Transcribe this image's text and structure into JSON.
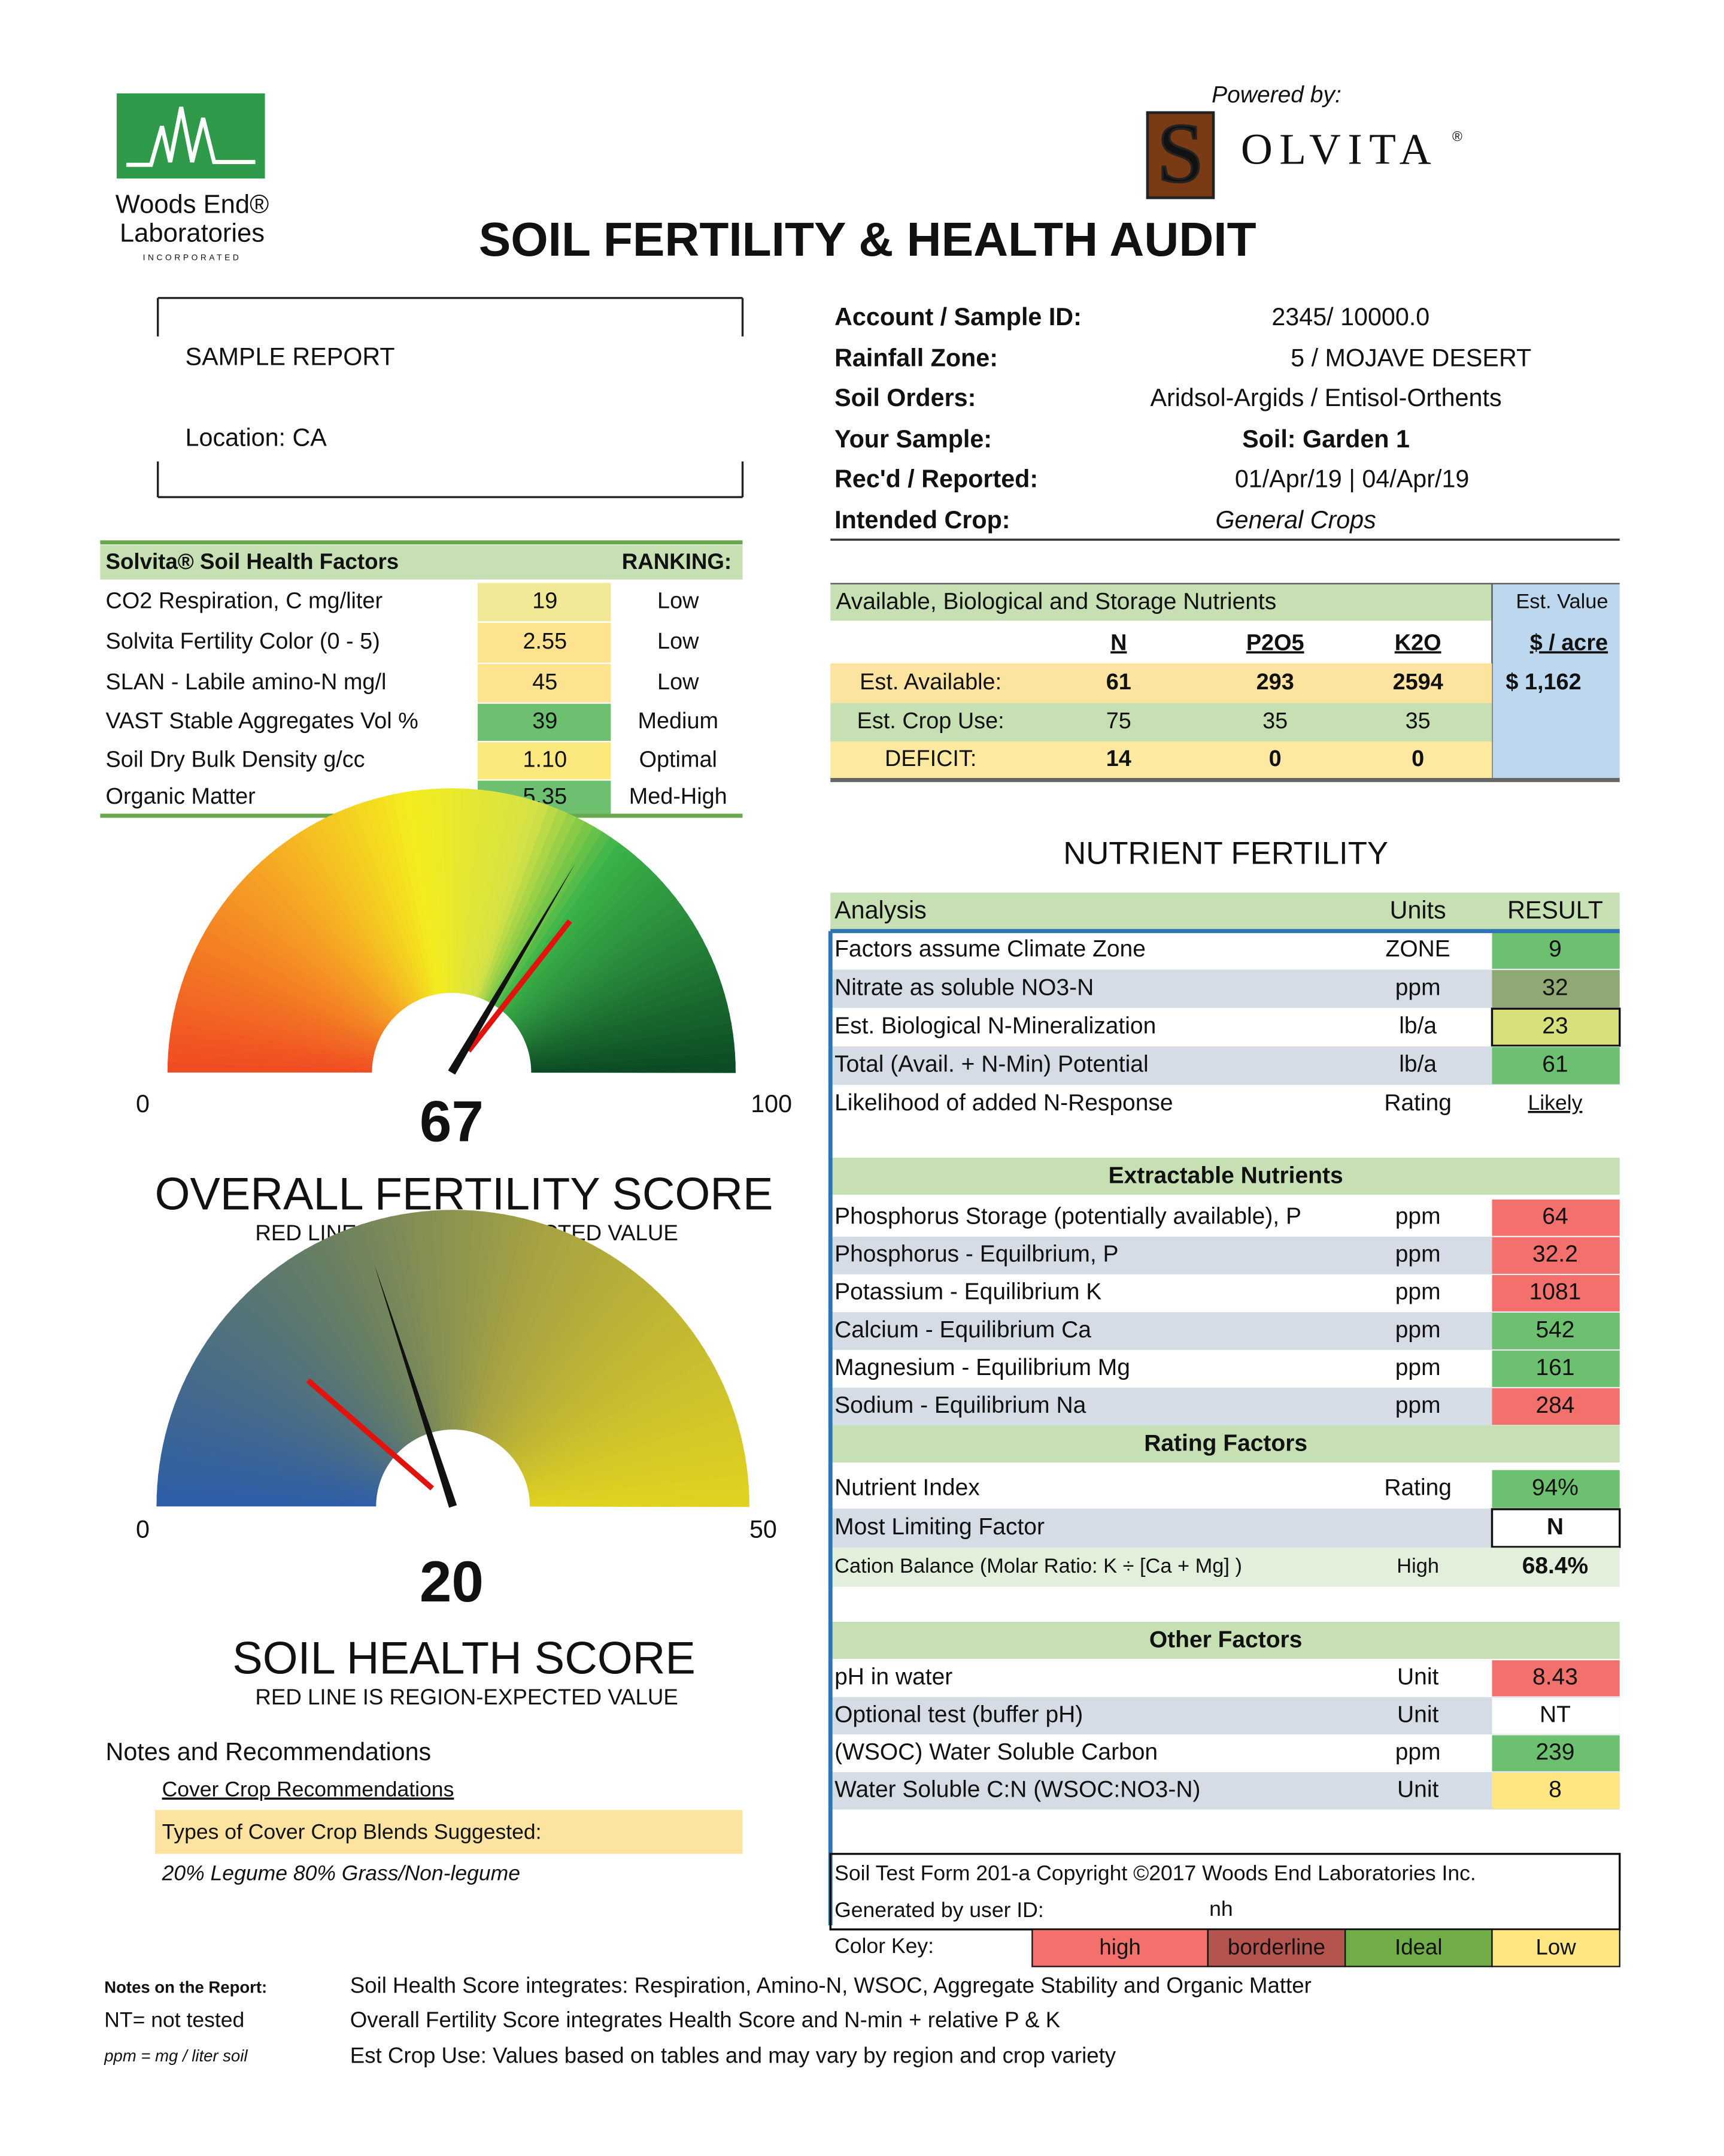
{
  "header": {
    "powered_by": "Powered by:",
    "brand_letter": "S",
    "brand_rest": "OLVITA",
    "brand_mark": "®",
    "lab_name_1": "Woods End®",
    "lab_name_2": "Laboratories",
    "lab_name_3": "INCORPORATED",
    "title": "SOIL FERTILITY & HEALTH AUDIT"
  },
  "sample": {
    "name": "SAMPLE REPORT",
    "location": "Location: CA"
  },
  "info": [
    [
      "Account / Sample ID:",
      "2345/ 10000.0"
    ],
    [
      "Rainfall Zone:",
      "5 / MOJAVE DESERT"
    ],
    [
      "Soil Orders:",
      "Aridsol-Argids / Entisol-Orthents"
    ],
    [
      "Your Sample:",
      "Soil: Garden 1"
    ],
    [
      "Rec'd / Reported:",
      "01/Apr/19 | 04/Apr/19"
    ],
    [
      "Intended Crop:",
      "General Crops"
    ]
  ],
  "health_factors": {
    "header": "Solvita® Soil Health Factors",
    "ranking_header": "RANKING:",
    "rows": [
      {
        "name": "CO2  Respiration, C mg/liter",
        "value": "19",
        "ranking": "Low",
        "color": "#f1e995"
      },
      {
        "name": "Solvita Fertility Color (0 - 5)",
        "value": "2.55",
        "ranking": "Low",
        "color": "#fde38f"
      },
      {
        "name": "SLAN - Labile amino-N  mg/l",
        "value": "45",
        "ranking": "Low",
        "color": "#fde38f"
      },
      {
        "name": "VAST Stable Aggregates Vol %",
        "value": "39",
        "ranking": "Medium",
        "color": "#6cc070"
      },
      {
        "name": "Soil Dry Bulk Density   g/cc",
        "value": "1.10",
        "ranking": "Optimal",
        "color": "#fbe97e"
      },
      {
        "name": "Organic Matter",
        "value": "5.35",
        "ranking": "Med-High",
        "color": "#6cc070"
      }
    ]
  },
  "nutrients": {
    "title": "Available, Biological and Storage Nutrients",
    "value_title": "Est. Value",
    "columns": [
      "N",
      "P2O5",
      "K2O",
      "$ / acre"
    ],
    "rows": [
      {
        "label": "Est. Available:",
        "values": [
          "61",
          "293",
          "2594"
        ],
        "value": "$  1,162"
      },
      {
        "label": "Est. Crop Use:",
        "values": [
          "75",
          "35",
          "35"
        ]
      },
      {
        "label": "DEFICIT:",
        "values": [
          "14",
          "0",
          "0"
        ]
      }
    ]
  },
  "gauges": [
    {
      "min": 0,
      "max": 100,
      "score": 67,
      "title": "OVERALL FERTILITY SCORE",
      "note": "RED LINE IS REGION-EXPECTED VALUE"
    },
    {
      "min": 0,
      "max": 50,
      "score": 20,
      "title": "SOIL HEALTH SCORE",
      "note": "RED LINE IS REGION-EXPECTED VALUE"
    }
  ],
  "recommendations": {
    "title": "Notes and Recommendations",
    "link": "Cover Crop Recommendations",
    "label": "Types of Cover Crop Blends Suggested:",
    "text": "20% Legume 80% Grass/Non-legume"
  },
  "fertility": {
    "title": "NUTRIENT FERTILITY",
    "header": [
      "Analysis",
      "Units",
      "RESULT"
    ],
    "sections": [
      {
        "rows": [
          {
            "name": "Factors assume Climate Zone",
            "units": "ZONE",
            "result": "9",
            "color": "#6cc070"
          },
          {
            "name": "Nitrate as soluble NO3-N",
            "units": "ppm",
            "result": "32",
            "color": "#8fa874"
          },
          {
            "name": "Est. Biological N-Mineralization",
            "units": "lb/a",
            "result": "23",
            "color": "#d8e07c",
            "boxed": true
          },
          {
            "name": "Total (Avail. + N-Min) Potential",
            "units": "lb/a",
            "result": "61",
            "color": "#6cc070"
          },
          {
            "name": "Likelihood of added N-Response",
            "units": "Rating",
            "result": "Likely",
            "underline": true
          }
        ]
      },
      {
        "title": "Extractable Nutrients",
        "rows": [
          {
            "name": "Phosphorus Storage (potentially available), P",
            "units": "ppm",
            "result": "64",
            "color": "#f4706c"
          },
          {
            "name": "Phosphorus - Equilbrium, P",
            "units": "ppm",
            "result": "32.2",
            "color": "#f4706c"
          },
          {
            "name": "Potassium -  Equilibrium K",
            "units": "ppm",
            "result": "1081",
            "color": "#f4706c"
          },
          {
            "name": "Calcium - Equilibrium Ca",
            "units": "ppm",
            "result": "542",
            "color": "#6cc070"
          },
          {
            "name": "Magnesium - Equilibrium Mg",
            "units": "ppm",
            "result": "161",
            "color": "#6cc070"
          },
          {
            "name": "Sodium - Equilibrium Na",
            "units": "ppm",
            "result": "284",
            "color": "#f4706c"
          }
        ]
      },
      {
        "title": "Rating Factors",
        "rows": [
          {
            "name": "Nutrient Index",
            "units": "Rating",
            "result": "94%",
            "color": "#6cc070"
          },
          {
            "name": "Most Limiting Factor",
            "result": "N",
            "color": "#ffffff",
            "boxed": true,
            "bold": true
          },
          {
            "name": "Cation Balance (Molar Ratio: K ÷ [Ca + Mg] )",
            "units": "High",
            "result": "68.4%",
            "bold": true,
            "small": true,
            "row_color": "#e2efda"
          }
        ]
      },
      {
        "title": "Other Factors",
        "rows": [
          {
            "name": "pH in water",
            "units": "Unit",
            "result": "8.43",
            "color": "#f4706c"
          },
          {
            "name": "Optional test (buffer pH)",
            "units": "Unit",
            "result": "NT",
            "color": "#ffffff"
          },
          {
            "name": "(WSOC) Water Soluble Carbon",
            "units": "ppm",
            "result": "239",
            "color": "#6cc070"
          },
          {
            "name": "Water Soluble C:N (WSOC:NO3-N)",
            "units": "Unit",
            "result": "8",
            "color": "#ffe680"
          }
        ]
      }
    ]
  },
  "footer": {
    "copyright": "Soil Test Form 201-a  Copyright ©2017 Woods End Laboratories Inc.",
    "user_label": "Generated by user ID:",
    "user": "nh",
    "key_label": "Color Key:",
    "key": [
      {
        "label": "high",
        "color": "#f4706c"
      },
      {
        "label": "borderline",
        "color": "#b5544f"
      },
      {
        "label": "Ideal",
        "color": "#70ad47"
      },
      {
        "label": "Low",
        "color": "#ffe680"
      }
    ]
  },
  "report_notes": {
    "title": "Notes on the Report:",
    "nt": "NT= not tested",
    "ppm": "ppm = mg / liter soil",
    "lines": [
      "Soil Health Score integrates: Respiration, Amino-N, WSOC, Aggregate Stability and Organic Matter",
      "Overall Fertility Score integrates Health Score and N-min + relative P & K",
      "Est Crop Use:  Values based on  tables and may vary by region and crop variety"
    ]
  }
}
